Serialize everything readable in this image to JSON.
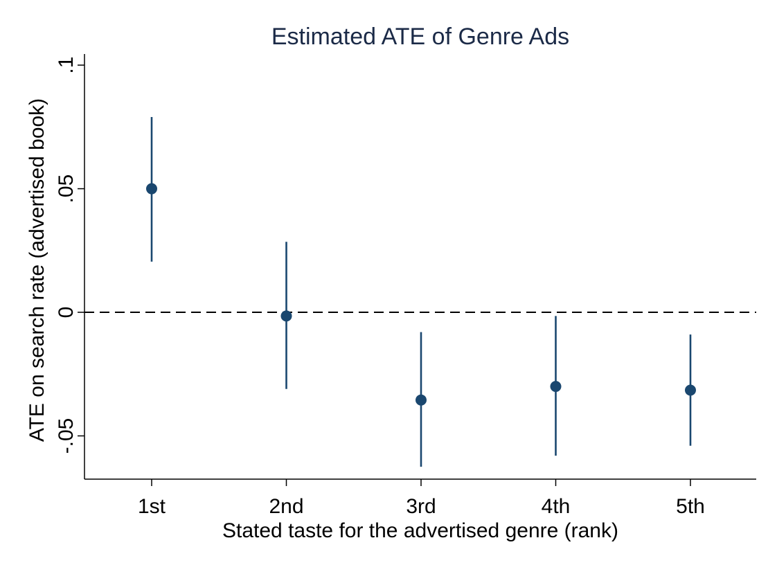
{
  "chart_data": {
    "type": "scatter",
    "title": "Estimated ATE of Genre Ads",
    "xlabel": "Stated taste for the advertised genre (rank)",
    "ylabel": "ATE on search rate (advertised book)",
    "categories": [
      "1st",
      "2nd",
      "3rd",
      "4th",
      "5th"
    ],
    "estimates": [
      0.05,
      -0.0015,
      -0.0355,
      -0.03,
      -0.0315
    ],
    "ci_lower": [
      0.0205,
      -0.031,
      -0.0625,
      -0.058,
      -0.054
    ],
    "ci_upper": [
      0.079,
      0.0285,
      -0.008,
      -0.0015,
      -0.009
    ],
    "yticks": [
      -0.05,
      0,
      0.05,
      0.1
    ],
    "ytick_labels": [
      "-.05",
      "0",
      ".05",
      ".1"
    ],
    "ylim": [
      -0.0675,
      0.1045
    ],
    "reference_line": 0,
    "grid": false,
    "legend": "none",
    "marker_color": "#1a476f",
    "title_color": "#1b2a47"
  }
}
